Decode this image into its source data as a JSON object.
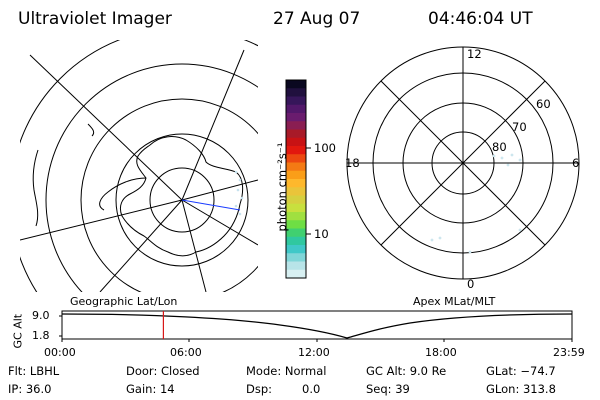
{
  "header": {
    "instrument": "Ultraviolet Imager",
    "date": "27 Aug 07",
    "time": "04:46:04 UT"
  },
  "colorbar": {
    "unit_label": "photon cm⁻²s⁻¹",
    "ticks": [
      "100",
      "10"
    ],
    "colors": [
      "#0a0820",
      "#20103e",
      "#36165a",
      "#52186a",
      "#6a1c6e",
      "#8a1e52",
      "#a81a28",
      "#c81214",
      "#e2180e",
      "#ec4810",
      "#f47a14",
      "#fa9e18",
      "#feb82c",
      "#eac43a",
      "#d6d040",
      "#c8e03e",
      "#a0e040",
      "#6ede44",
      "#40d070",
      "#30c8a0",
      "#40c8c8",
      "#80d6d8",
      "#b8e4e8",
      "#d8f0f2"
    ],
    "scale": "log"
  },
  "polar_plot": {
    "mlt_labels": [
      "12",
      "18",
      "6",
      "0"
    ],
    "lat_labels": [
      "60",
      "70",
      "80"
    ]
  },
  "captions": {
    "left": "Geographic Lat/Lon",
    "right": "Apex MLat/MLT"
  },
  "timeline": {
    "ylabel": "GC Alt",
    "y_ticks": [
      "9.0",
      "1.8"
    ],
    "x_ticks": [
      "00:00",
      "06:00",
      "12:00",
      "18:00",
      "23:59"
    ],
    "marker_time": "04:46:04"
  },
  "status": {
    "flt": "Flt: LBHL",
    "ip": "IP: 36.0",
    "door": "Door: Closed",
    "gain": "Gain: 14",
    "mode": "Mode: Normal",
    "dsp_label": "Dsp:",
    "dsp_value": "0.0",
    "gc_alt": "GC Alt: 9.0 Re",
    "seq": "Seq: 39",
    "glat": "GLat: −74.7",
    "glon": "GLon: 313.8"
  }
}
